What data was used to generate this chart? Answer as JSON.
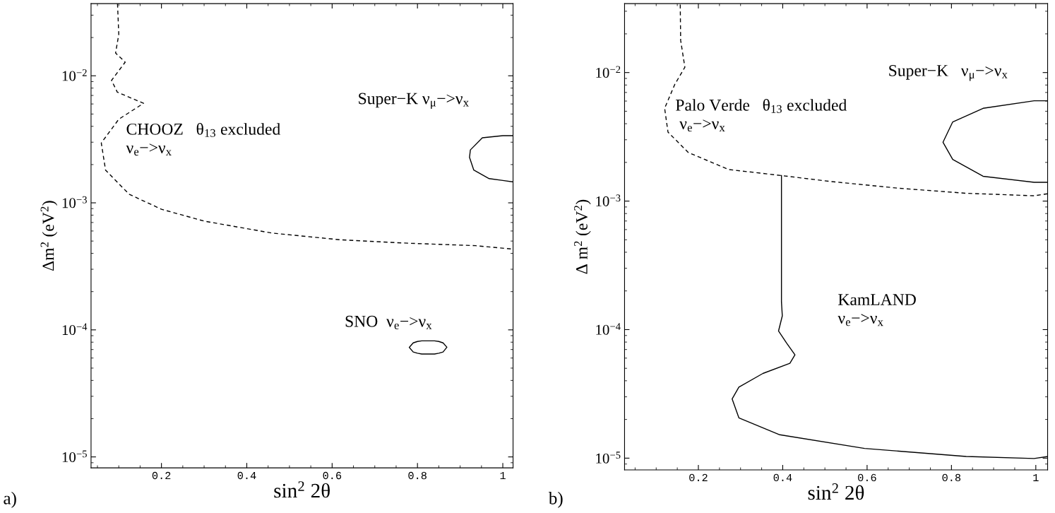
{
  "chart_data": [
    {
      "type": "line",
      "xlabel": "sin$^{2}$ 2θ",
      "ylabel": "Δm$^{2}$ (eV$^{2}$)",
      "log": "y",
      "grid": false,
      "legend": false,
      "xlim": [
        0.035,
        1.024
      ],
      "ylim": [
        8.2e-06,
        0.037
      ],
      "xticks": [
        {
          "value": 0.2,
          "label": "0.2"
        },
        {
          "value": 0.4,
          "label": "0.4"
        },
        {
          "value": 0.6,
          "label": "0.6"
        },
        {
          "value": 0.8,
          "label": "0.8"
        },
        1
      ],
      "yticks": [
        {
          "value": 1e-05,
          "label": "10$^{−5}$"
        },
        {
          "value": 0.0001,
          "label": "10$^{−4}$"
        },
        {
          "value": 0.001,
          "label": "10$^{−3}$"
        },
        {
          "value": 0.01,
          "label": "10$^{−2}$"
        }
      ],
      "series": [
        {
          "color": "#000000",
          "line_style": "dashed",
          "x": [
            0.097,
            0.1,
            0.0925,
            0.115,
            0.083,
            0.0965,
            0.158,
            0.1,
            0.059,
            0.069,
            0.124,
            0.2,
            0.3,
            0.459,
            0.618,
            0.777,
            0.936,
            1.024
          ],
          "values": [
            0.0369,
            0.0212,
            0.0151,
            0.0128,
            0.0092,
            0.00744,
            0.00607,
            0.00455,
            0.00296,
            0.00181,
            0.00117,
            0.00089,
            0.000718,
            0.000578,
            0.000512,
            0.000481,
            0.00046,
            0.000432
          ]
        },
        {
          "color": "#000000",
          "line_style": "solid",
          "x": [
            1.024,
            1.0,
            0.952,
            0.924,
            0.922,
            0.932,
            0.968,
            1.0,
            1.024
          ],
          "values": [
            0.00338,
            0.00338,
            0.00325,
            0.00261,
            0.00228,
            0.00181,
            0.00155,
            0.0015,
            0.00146
          ]
        },
        {
          "color": "#000000",
          "line_style": "solid",
          "x": [
            0.781,
            0.79,
            0.8,
            0.81,
            0.825,
            0.84,
            0.85,
            0.86,
            0.869,
            0.86,
            0.85,
            0.84,
            0.825,
            0.81,
            0.8,
            0.79,
            0.782
          ],
          "values": [
            7.3e-05,
            7.9e-05,
            8.1e-05,
            8.2e-05,
            8.2e-05,
            8.2e-05,
            8.1e-05,
            7.9e-05,
            7.3e-05,
            6.7e-05,
            6.55e-05,
            6.46e-05,
            6.46e-05,
            6.46e-05,
            6.55e-05,
            6.7e-05,
            7.2e-05
          ]
        }
      ],
      "annotations": [
        "a)",
        "CHOOZ   θ$_{13}$ excluded\nν$_{e}$−>ν$_{x}$",
        "Super−K ν$_{μ}$−>ν$_{x}$",
        "SNO  ν$_{e}$−>ν$_{x}$"
      ]
    },
    {
      "type": "line",
      "xlabel": "sin$^{2}$ 2θ",
      "ylabel": "Δ m$^{2}$ (eV$^{2}$)",
      "log": "y",
      "grid": false,
      "legend": false,
      "xlim": [
        0.025,
        1.028
      ],
      "ylim": [
        8.1e-06,
        0.0344
      ],
      "xticks": [
        {
          "value": 0.2,
          "label": "0.2"
        },
        {
          "value": 0.4,
          "label": "0.4"
        },
        {
          "value": 0.6,
          "label": "0.6"
        },
        {
          "value": 0.8,
          "label": "0.8"
        },
        1
      ],
      "yticks": [
        {
          "value": 1e-05,
          "label": "10$^{−5}$"
        },
        {
          "value": 0.0001,
          "label": "10$^{−4}$"
        },
        {
          "value": 0.001,
          "label": "10$^{−3}$"
        },
        {
          "value": 0.01,
          "label": "10$^{−2}$"
        }
      ],
      "series": [
        {
          "color": "#000000",
          "line_style": "dashed",
          "x": [
            0.157,
            0.158,
            0.168,
            0.144,
            0.12,
            0.128,
            0.176,
            0.272,
            0.397,
            0.514,
            0.674,
            0.835,
            0.996,
            1.028
          ],
          "values": [
            0.0338,
            0.0178,
            0.011,
            0.00808,
            0.00527,
            0.00344,
            0.00239,
            0.00176,
            0.00158,
            0.00142,
            0.00126,
            0.00115,
            0.0011,
            0.00114
          ]
        },
        {
          "color": "#000000",
          "line_style": "solid",
          "x": [
            0.397,
            0.397,
            0.399,
            0.39,
            0.409,
            0.429,
            0.417,
            0.353,
            0.296,
            0.28,
            0.296,
            0.393,
            0.594,
            0.835,
            0.996,
            1.028
          ],
          "values": [
            0.00158,
            0.000164,
            0.000128,
            9.75e-05,
            7.88e-05,
            6.37e-05,
            5.47e-05,
            4.56e-05,
            3.57e-05,
            2.89e-05,
            2.06e-05,
            1.52e-05,
            1.19e-05,
            1.03e-05,
            9.94e-06,
            1.03e-05
          ]
        },
        {
          "color": "#000000",
          "line_style": "solid",
          "x": [
            1.028,
            0.996,
            0.875,
            0.803,
            0.78,
            0.803,
            0.875,
            0.996,
            1.028
          ],
          "values": [
            0.00603,
            0.00603,
            0.00527,
            0.00413,
            0.00287,
            0.00211,
            0.00156,
            0.0014,
            0.0014
          ]
        }
      ],
      "annotations": [
        "b)",
        "Palo Verde   θ$_{13}$ excluded\n ν$_{e}$−>ν$_{x}$",
        "Super−K   ν$_{μ}$−>ν$_{x}$",
        "KamLAND\nν$_{e}$−>ν$_{x}$"
      ]
    }
  ]
}
